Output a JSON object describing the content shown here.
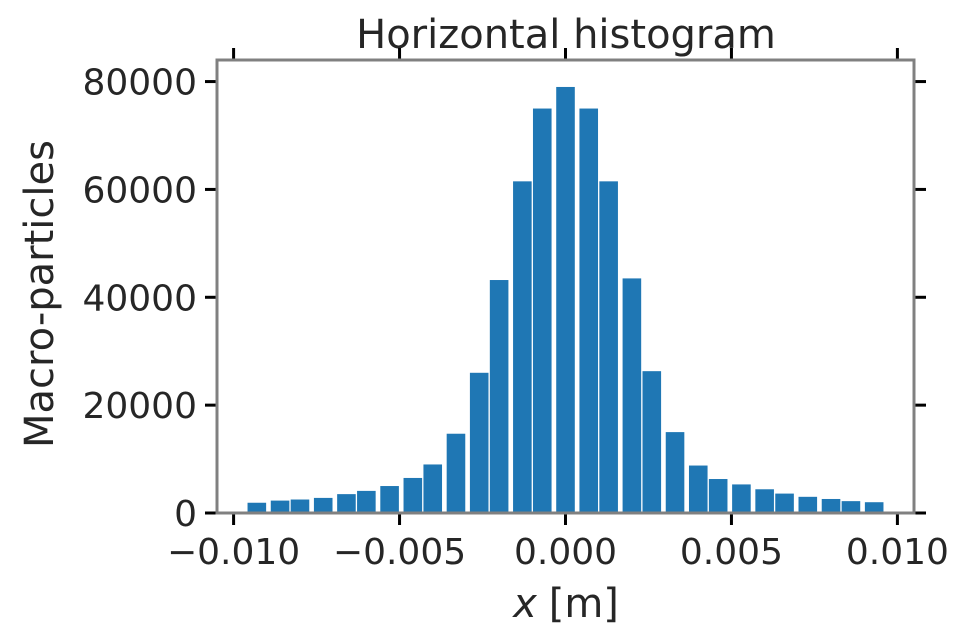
{
  "chart_data": {
    "type": "bar",
    "title": "Horizontal histogram",
    "xlabel_var": "x",
    "xlabel_unit": "[m]",
    "ylabel": "Macro-particles",
    "xlim": [
      -0.0105,
      0.0105
    ],
    "ylim": [
      0,
      84000
    ],
    "xticks": [
      -0.01,
      -0.005,
      0.0,
      0.005,
      0.01
    ],
    "xtick_labels": [
      "−0.010",
      "−0.005",
      "0.000",
      "0.005",
      "0.010"
    ],
    "yticks": [
      0,
      20000,
      40000,
      60000,
      80000
    ],
    "ytick_labels": [
      "0",
      "20000",
      "40000",
      "60000",
      "80000"
    ],
    "bar_width": 0.00056,
    "bar_color": "#1f77b4",
    "frame_color": "#808080",
    "x": [
      -0.0093,
      -0.0086,
      -0.008,
      -0.0073,
      -0.0066,
      -0.006,
      -0.0053,
      -0.0046,
      -0.004,
      -0.0033,
      -0.0026,
      -0.002,
      -0.0013,
      -0.0007,
      0.0,
      0.0007,
      0.0013,
      0.002,
      0.0026,
      0.0033,
      0.004,
      0.0046,
      0.0053,
      0.006,
      0.0066,
      0.0073,
      0.008,
      0.0086,
      0.0093
    ],
    "values": [
      1900,
      2300,
      2500,
      2800,
      3500,
      4100,
      5000,
      6500,
      9000,
      14700,
      26000,
      43200,
      61500,
      75000,
      79000,
      75000,
      61500,
      43500,
      26300,
      15000,
      8800,
      6300,
      5300,
      4400,
      3600,
      3000,
      2600,
      2200,
      2000
    ]
  }
}
